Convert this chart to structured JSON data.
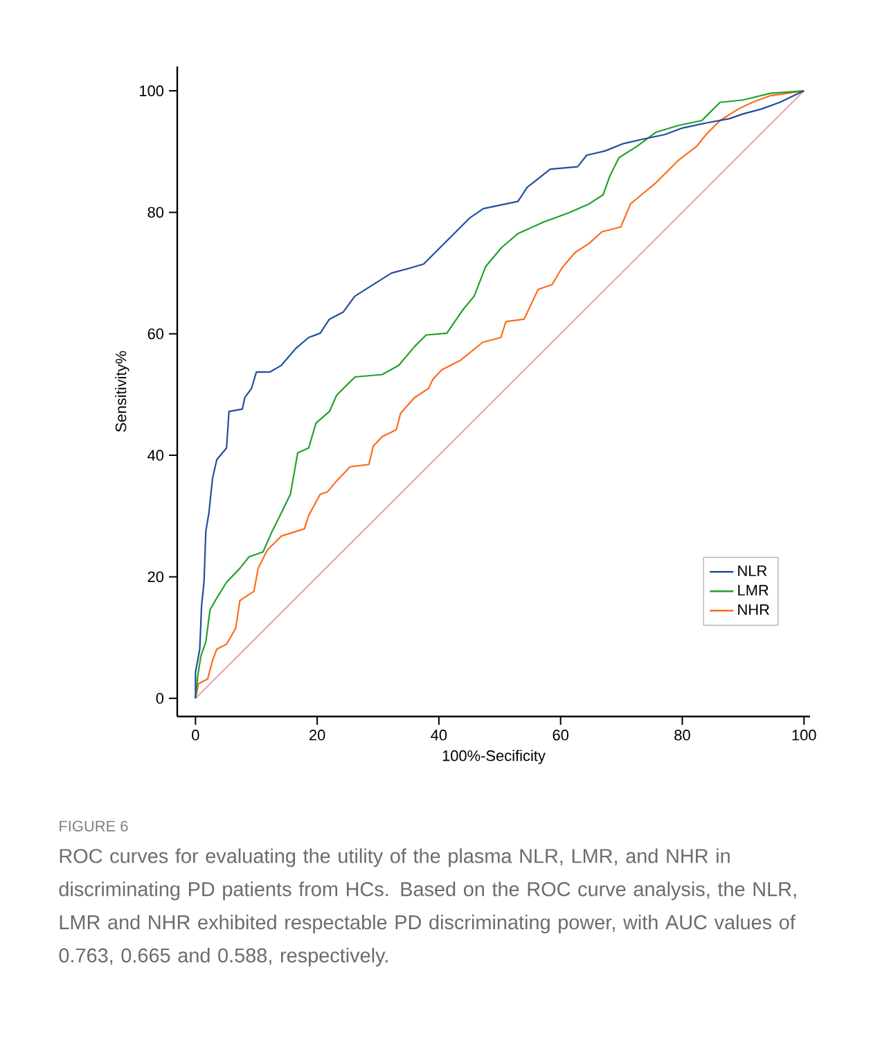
{
  "chart_data": {
    "type": "line",
    "xlabel": "100%-Secificity",
    "ylabel": "Sensitivity%",
    "xlim": [
      -3,
      101
    ],
    "ylim": [
      -3,
      104
    ],
    "xticks": [
      0,
      20,
      40,
      60,
      80,
      100
    ],
    "yticks": [
      0,
      20,
      40,
      60,
      80,
      100
    ],
    "grid": false,
    "legend": "bottom right",
    "marker": "none",
    "line_style": "solid",
    "annotations": [
      "FIGURE 6",
      "ROC curves for evaluating the utility of the plasma NLR, LMR, and NHR in discriminating PD patients from HCs. Based on the ROC curve analysis, the NLR, LMR and NHR exhibited respectable PD discriminating power, with AUC values of 0.763, 0.665 and 0.588, respectively."
    ],
    "series": [
      {
        "color": "#e8a8a8",
        "x": [
          0,
          100
        ],
        "values": [
          0,
          100
        ]
      },
      {
        "name": "NHR",
        "color": "#ff6a1a",
        "x": [
          0,
          0.5,
          2,
          2.8,
          3.5,
          5.1,
          6.6,
          7.3,
          9.6,
          10.3,
          11.8,
          14.1,
          17.9,
          18.6,
          20.5,
          21.7,
          23.2,
          25.4,
          28.5,
          29.2,
          30.7,
          33,
          33.7,
          36,
          38.3,
          39,
          40.5,
          43.5,
          47.2,
          50.2,
          51,
          54,
          56.3,
          58.6,
          60.2,
          62.4,
          64.7,
          66.8,
          69.9,
          71.5,
          73.3,
          75.6,
          77.9,
          79.4,
          82.4,
          83.9,
          86.2,
          89.2,
          91.5,
          94.5,
          100
        ],
        "values": [
          0,
          2.4,
          3.2,
          6.2,
          8.1,
          8.9,
          11.5,
          16.1,
          17.6,
          21.4,
          24.4,
          26.7,
          27.9,
          30.1,
          33.6,
          34,
          35.8,
          38.1,
          38.5,
          41.5,
          43.1,
          44.2,
          46.9,
          49.5,
          51,
          52.5,
          54.1,
          55.6,
          58.6,
          59.4,
          62,
          62.4,
          67.3,
          68.1,
          70.8,
          73.4,
          74.9,
          76.8,
          77.6,
          81.4,
          82.9,
          84.8,
          87.1,
          88.6,
          90.9,
          92.8,
          95.1,
          97,
          98.1,
          99.2,
          100
        ]
      },
      {
        "name": "LMR",
        "color": "#22a02a",
        "x": [
          0,
          0.4,
          0.9,
          1.7,
          2.4,
          3.5,
          5.1,
          7.3,
          8.8,
          11.1,
          12.6,
          14.1,
          15.6,
          16.8,
          18.6,
          19.8,
          22,
          23.2,
          26.2,
          30.7,
          33.4,
          36,
          37.9,
          41.3,
          43.9,
          45.8,
          47.7,
          50.3,
          53,
          57.2,
          61.3,
          64.7,
          67,
          68.1,
          69.6,
          72.6,
          75.7,
          79.4,
          83.2,
          84.7,
          86.2,
          90,
          94.5,
          100
        ],
        "values": [
          0,
          3.9,
          7,
          9.3,
          14.6,
          16.5,
          19.1,
          21.4,
          23.3,
          24.1,
          27.5,
          30.5,
          33.6,
          40.4,
          41.2,
          45.3,
          47.2,
          49.9,
          52.9,
          53.3,
          54.8,
          57.9,
          59.8,
          60.1,
          63.9,
          66.2,
          71.1,
          74.2,
          76.5,
          78.4,
          79.9,
          81.4,
          82.9,
          86,
          89,
          90.9,
          93.2,
          94.3,
          95.1,
          96.6,
          98.1,
          98.5,
          99.6,
          100
        ]
      },
      {
        "name": "NLR",
        "color": "#1f4e9c",
        "x": [
          0,
          0,
          0.7,
          1,
          1.4,
          1.7,
          2.2,
          2.8,
          3.5,
          5.1,
          5.5,
          7.7,
          8.1,
          9.2,
          10,
          12.2,
          14.1,
          16.4,
          18.6,
          20.5,
          22,
          24.3,
          26.2,
          29.2,
          32.2,
          35.2,
          37.5,
          39.8,
          42.8,
          45.1,
          47.3,
          49.2,
          53,
          54.5,
          56.4,
          58.3,
          62.8,
          64.3,
          67.3,
          70.3,
          73.3,
          77.1,
          80.1,
          83.9,
          87.7,
          90,
          93,
          96,
          100
        ],
        "values": [
          0,
          4.3,
          8.1,
          15.3,
          19.1,
          27.5,
          30.5,
          36.2,
          39.3,
          41.2,
          47.2,
          47.6,
          49.5,
          51,
          53.7,
          53.7,
          54.8,
          57.5,
          59.4,
          60.1,
          62.4,
          63.6,
          66.2,
          68.1,
          70,
          70.8,
          71.5,
          73.8,
          76.8,
          79.1,
          80.6,
          81,
          81.8,
          84.1,
          85.6,
          87.1,
          87.5,
          89.4,
          90.1,
          91.3,
          92,
          92.8,
          93.9,
          94.7,
          95.4,
          96.2,
          97,
          98.1,
          100
        ]
      }
    ]
  }
}
